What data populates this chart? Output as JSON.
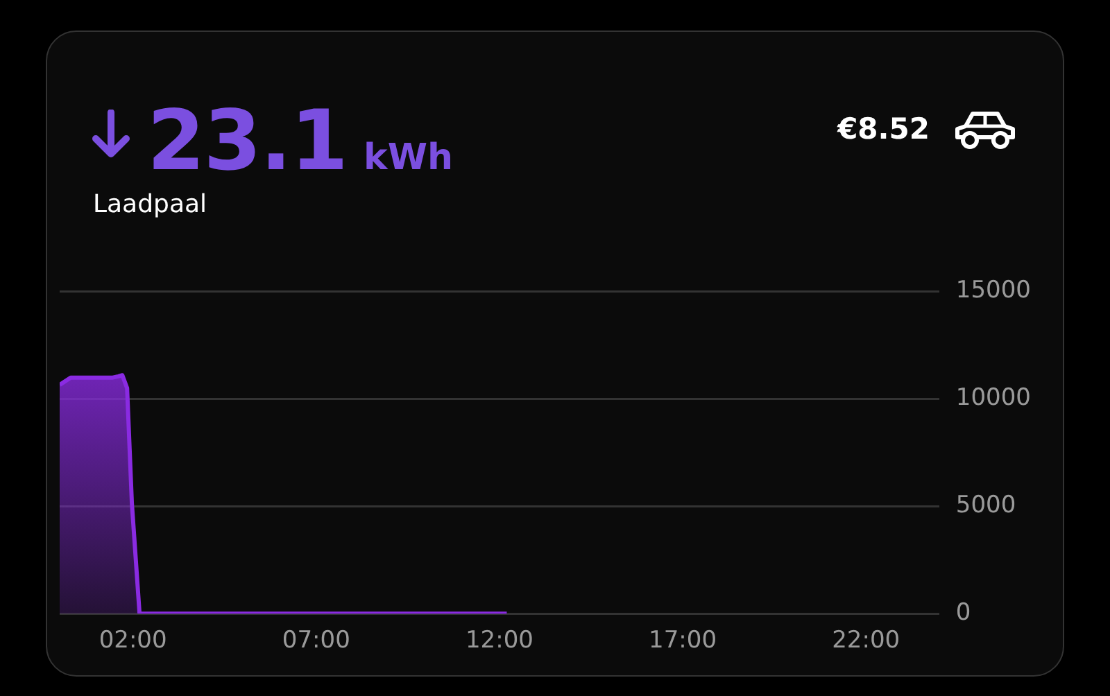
{
  "chart_data": {
    "type": "area",
    "annotations": [
      "23.1",
      "kWh",
      "Laadpaal",
      "€8.52"
    ],
    "series": [
      {
        "color": "#8a2be2",
        "x": [
          0,
          0.3,
          1.45,
          1.6,
          1.71,
          1.84,
          1.97,
          2.18,
          12.2
        ],
        "values": [
          10650,
          10990,
          10990,
          11050,
          11100,
          10500,
          5150,
          0,
          0
        ]
      }
    ],
    "xlim": [
      0,
      24
    ],
    "xticks": [
      {
        "value": 2,
        "label": "02:00"
      },
      {
        "value": 7,
        "label": "07:00"
      },
      {
        "value": 12,
        "label": "12:00"
      },
      {
        "value": 17,
        "label": "17:00"
      },
      {
        "value": 22,
        "label": "22:00"
      }
    ],
    "ylim": [
      0,
      15000
    ],
    "yticks": [
      0,
      5000,
      10000,
      15000
    ],
    "grid": "y",
    "legend": false,
    "marker": "none"
  }
}
